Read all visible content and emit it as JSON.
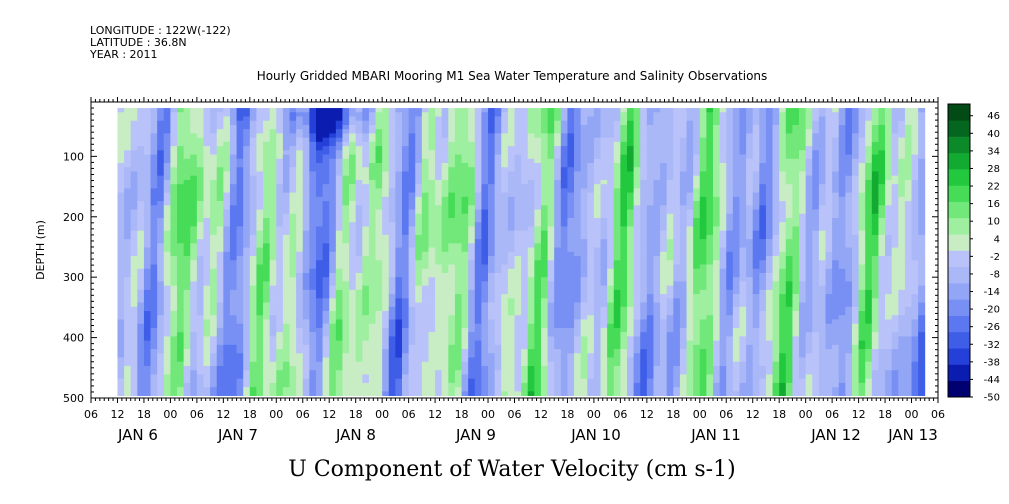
{
  "header": {
    "longitude": "LONGITUDE : 122W(-122)",
    "latitude": "LATITUDE : 36.8N",
    "year": "YEAR : 2011"
  },
  "chart_data": {
    "type": "heatmap",
    "title": "Hourly Gridded MBARI Mooring M1 Sea Water Temperature and Salinity Observations",
    "xlabel": "U Component of Water Velocity (cm s-1)",
    "ylabel": "DEPTH (m)",
    "x_axis": {
      "type": "time",
      "range": [
        "JAN 5 06",
        "JAN 13 06"
      ],
      "data_range": [
        "JAN 5 12",
        "JAN 13 03"
      ],
      "hour_ticks": [
        "06",
        "12",
        "18",
        "00",
        "06",
        "12",
        "18",
        "00",
        "06",
        "12",
        "18",
        "00",
        "06",
        "12",
        "18",
        "00",
        "06",
        "12",
        "18",
        "00",
        "06",
        "12",
        "18",
        "00",
        "06",
        "12",
        "18",
        "00",
        "06",
        "12",
        "18",
        "00",
        "06"
      ],
      "day_labels": [
        "JAN  6",
        "JAN  7",
        "JAN  8",
        "JAN  9",
        "JAN 10",
        "JAN 11",
        "JAN 12",
        "JAN 13"
      ]
    },
    "y_axis": {
      "range": [
        10,
        500
      ],
      "inverted": true,
      "ticks": [
        100,
        200,
        300,
        400,
        500
      ],
      "data_range": [
        20,
        490
      ]
    },
    "colorbar": {
      "levels": [
        "46",
        "40",
        "34",
        "28",
        "22",
        "16",
        "10",
        "4",
        "-2",
        "-8",
        "-14",
        "-20",
        "-26",
        "-32",
        "-38",
        "-44",
        "-50"
      ],
      "min": -50,
      "max": 50,
      "colors_low_to_high": [
        "#000070",
        "#0a1db0",
        "#2540d8",
        "#3f5ee8",
        "#5c78f0",
        "#7890f4",
        "#93a6f6",
        "#aab8f8",
        "#b9c3f9",
        "#c8ecc4",
        "#9ef0a0",
        "#72e87a",
        "#46dc58",
        "#22c83e",
        "#13aa32",
        "#0c8a2a",
        "#056620",
        "#024a16"
      ],
      "levels_min": -50,
      "levels_max": 50,
      "level_step": 6
    },
    "grid": false,
    "values_note": "U velocity mostly between about -26 and +28 cm/s; vertical streaks of positive (green) and negative (blue) values alternating in time; strongest negatives near 20-80 m on JAN 7-8"
  }
}
